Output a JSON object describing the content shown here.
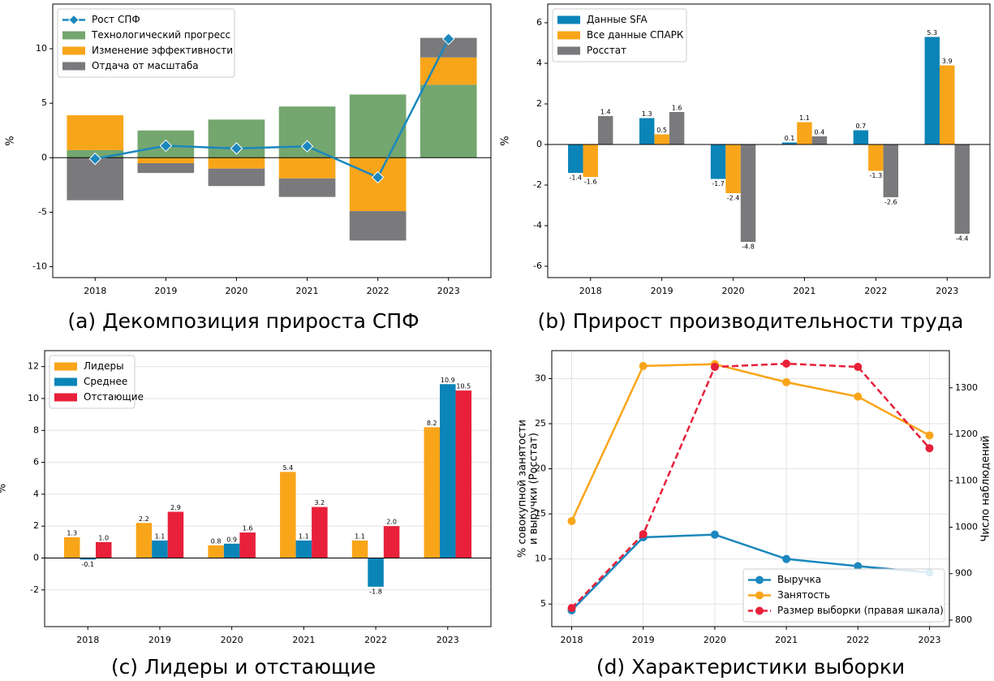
{
  "chart_data": [
    {
      "type": "bar",
      "stacked": true,
      "title": "(a) Декомпозиция прироста СПФ",
      "ylabel": [
        "%"
      ],
      "categories": [
        "2018",
        "2019",
        "2020",
        "2021",
        "2022",
        "2023"
      ],
      "series": [
        {
          "name": "Рост СПФ",
          "type": "line",
          "marker": "diamond",
          "color": "#1b87bd",
          "values": [
            -0.1,
            1.1,
            0.85,
            1.05,
            -1.8,
            10.9
          ]
        },
        {
          "name": "Технологический прогресс",
          "color": "#74a66f",
          "values": [
            0.7,
            2.5,
            3.5,
            4.7,
            5.8,
            6.7
          ]
        },
        {
          "name": "Изменение эффективности",
          "color": "#f9a51a",
          "values": [
            3.2,
            -0.5,
            -1.0,
            -1.9,
            -4.9,
            2.5
          ]
        },
        {
          "name": "Отдача от масштаба",
          "color": "#7a7a7c",
          "values": [
            -3.9,
            -0.9,
            -1.6,
            -1.7,
            -2.7,
            1.8
          ]
        }
      ],
      "ylim": [
        -11,
        14.1
      ],
      "yticks": [
        -10,
        -5,
        0,
        5,
        10
      ],
      "grid": false,
      "legend": "upper left"
    },
    {
      "type": "bar",
      "stacked": false,
      "title": "(b) Прирост производительности труда",
      "ylabel": [
        "%"
      ],
      "categories": [
        "2018",
        "2019",
        "2020",
        "2021",
        "2022",
        "2023"
      ],
      "series": [
        {
          "name": "Данные SFA",
          "color": "#0b84b8",
          "values": [
            -1.4,
            1.3,
            -1.7,
            0.1,
            0.7,
            5.3
          ]
        },
        {
          "name": "Все данные СПАРК",
          "color": "#f9a51a",
          "values": [
            -1.6,
            0.5,
            -2.4,
            1.1,
            -1.3,
            3.9
          ]
        },
        {
          "name": "Росстат",
          "color": "#7a7a7c",
          "values": [
            1.4,
            1.6,
            -4.8,
            0.4,
            -2.6,
            -4.4
          ]
        }
      ],
      "ylim": [
        -6.56,
        6.92
      ],
      "yticks": [
        -6,
        -4,
        -2,
        0,
        2,
        4,
        6
      ],
      "grid": false,
      "legend": "upper left"
    },
    {
      "type": "bar",
      "stacked": false,
      "title": "(c) Лидеры и отстающие",
      "ylabel": [
        "%"
      ],
      "categories": [
        "2018",
        "2019",
        "2020",
        "2021",
        "2022",
        "2023"
      ],
      "series": [
        {
          "name": "Лидеры",
          "color": "#f9a51a",
          "values": [
            1.3,
            2.2,
            0.8,
            5.4,
            1.1,
            8.2
          ],
          "value_labels": [
            "1.3",
            "2.2",
            "0.8",
            "5.4",
            "1.1",
            "8.2"
          ]
        },
        {
          "name": "Среднее",
          "color": "#0b84b8",
          "values": [
            -0.1,
            1.1,
            0.9,
            1.1,
            -1.8,
            10.9
          ],
          "value_labels": [
            "-0.1",
            "1.1",
            "0.9",
            "1.1",
            "-1.8",
            "10.9"
          ]
        },
        {
          "name": "Отстающие",
          "color": "#e8203a",
          "values": [
            1.0,
            2.9,
            1.6,
            3.2,
            2.0,
            10.5
          ],
          "value_labels": [
            "1.0",
            "2.9",
            "1.6",
            "3.2",
            "2.0",
            "10.5"
          ]
        }
      ],
      "ylim": [
        -4.3,
        13.0
      ],
      "yticks": [
        -2,
        0,
        2,
        4,
        6,
        8,
        10,
        12
      ],
      "grid": true,
      "legend": "upper left"
    },
    {
      "type": "line",
      "title": "(d) Характеристики выборки",
      "ylabel": [
        "% совокупной занятости",
        "и выручки (Росстат)"
      ],
      "y2label": "Число наблюдений",
      "categories": [
        "2018",
        "2019",
        "2020",
        "2021",
        "2022",
        "2023"
      ],
      "series": [
        {
          "name": "Выручка",
          "color": "#1b87bd",
          "values": [
            4.3,
            12.4,
            12.7,
            10.0,
            9.2,
            8.5
          ]
        },
        {
          "name": "Занятость",
          "color": "#f9a51a",
          "values": [
            14.2,
            31.4,
            31.6,
            29.6,
            28.0,
            23.7
          ]
        },
        {
          "name": "Размер выборки (правая шкала)",
          "color": "#e8203a",
          "axis": "y2",
          "linestyle": "dashed",
          "values": [
            826,
            985,
            1345,
            1352,
            1345,
            1170
          ]
        }
      ],
      "ylim": [
        2.5,
        33.1
      ],
      "yticks": [
        5,
        10,
        15,
        20,
        25,
        30
      ],
      "y2lim": [
        786,
        1380
      ],
      "y2ticks": [
        800,
        900,
        1000,
        1100,
        1200,
        1300
      ],
      "grid": true,
      "legend": "lower right"
    }
  ]
}
